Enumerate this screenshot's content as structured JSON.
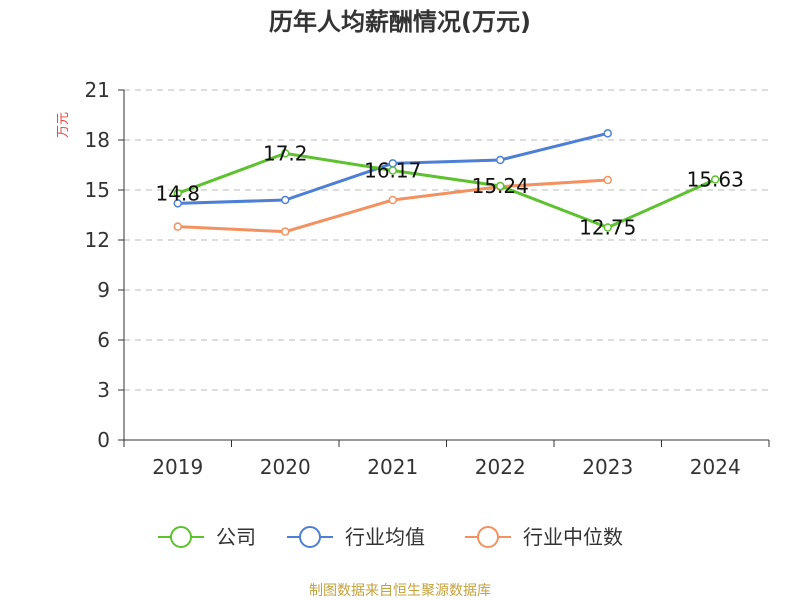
{
  "chart_data": {
    "type": "line",
    "title": "历年人均薪酬情况(万元)",
    "ylabel": "万元",
    "ylim": [
      0,
      21
    ],
    "yticks": [
      0,
      3,
      6,
      9,
      12,
      15,
      18,
      21
    ],
    "categories": [
      "2019",
      "2020",
      "2021",
      "2022",
      "2023",
      "2024"
    ],
    "grid": true,
    "legend_position": "bottom",
    "series": [
      {
        "name": "公司",
        "color": "#5ec12f",
        "values": [
          14.8,
          17.2,
          16.17,
          15.24,
          12.75,
          15.63
        ],
        "labels": [
          "14.8",
          "17.2",
          "16.17",
          "15.24",
          "12.75",
          "15.63"
        ]
      },
      {
        "name": "行业均值",
        "color": "#4e7fd6",
        "values": [
          14.2,
          14.4,
          16.6,
          16.8,
          18.4,
          null
        ],
        "labels": []
      },
      {
        "name": "行业中位数",
        "color": "#f39260",
        "values": [
          12.8,
          12.5,
          14.4,
          15.2,
          15.6,
          null
        ],
        "labels": []
      }
    ],
    "source": "制图数据来自恒生聚源数据库"
  }
}
